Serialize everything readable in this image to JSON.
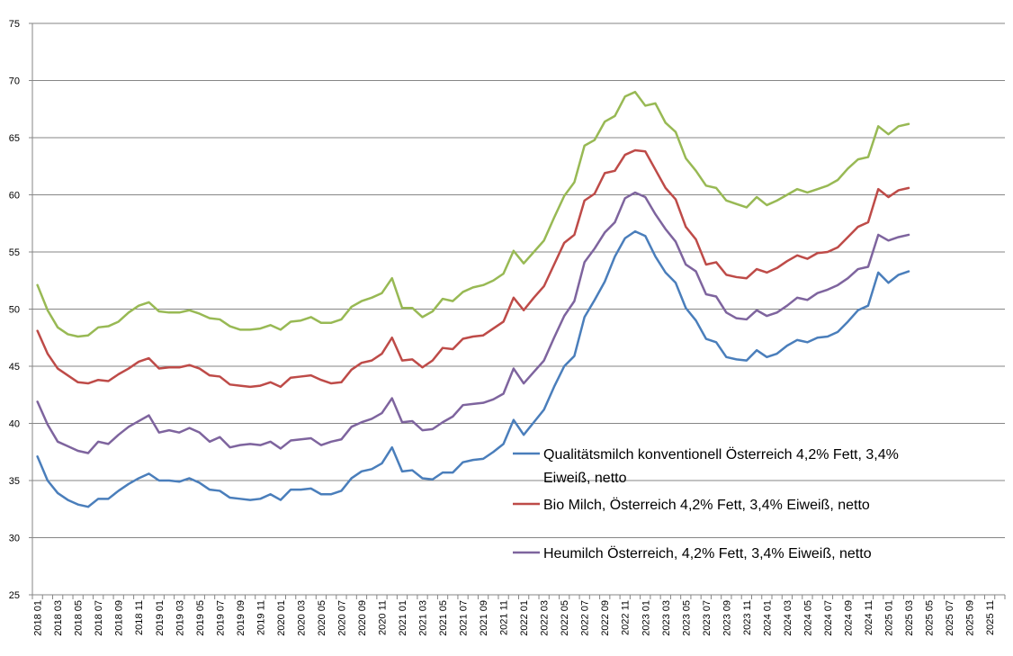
{
  "chart_data": {
    "type": "line",
    "title": "",
    "xlabel": "",
    "ylabel": "",
    "ylim": [
      25,
      75
    ],
    "y_ticks": [
      "25",
      "30",
      "35",
      "40",
      "45",
      "50",
      "55",
      "60",
      "65",
      "70",
      "75"
    ],
    "grid": "horizontal",
    "legend_position": "inside-lower-right",
    "x_tick_labels": [
      "2018 01",
      "2018 03",
      "2018 05",
      "2018 07",
      "2018 09",
      "2018 11",
      "2019 01",
      "2019 03",
      "2019 05",
      "2019 07",
      "2019 09",
      "2019 11",
      "2020 01",
      "2020 03",
      "2020 05",
      "2020 07",
      "2020 09",
      "2020 11",
      "2021 01",
      "2021 03",
      "2021 05",
      "2021 07",
      "2021 09",
      "2021 11",
      "2022 01",
      "2022 03",
      "2022 05",
      "2022 07",
      "2022 09",
      "2022 11",
      "2023 01",
      "2023 03",
      "2023 05",
      "2023 07",
      "2023 09",
      "2023 11",
      "2024 01",
      "2024 03",
      "2024 05",
      "2024 07",
      "2024 09",
      "2024 11",
      "2025 01",
      "2025 03",
      "2025 05",
      "2025 07",
      "2025 09",
      "2025 11"
    ],
    "x_month_count": 96,
    "series": [
      {
        "name": "Qualitätsmilch konventionell Österreich 4,2% Fett, 3,4% Eiweiß, netto",
        "legend_lines": [
          "Qualitätsmilch konventionell Österreich 4,2% Fett, 3,4%",
          "Eiweiß, netto"
        ],
        "color": "#4a7ebb",
        "values": [
          37.1,
          35.0,
          33.9,
          33.3,
          32.9,
          32.7,
          33.4,
          33.4,
          34.1,
          34.7,
          35.2,
          35.6,
          35.0,
          35.0,
          34.9,
          35.2,
          34.8,
          34.2,
          34.1,
          33.5,
          33.4,
          33.3,
          33.4,
          33.8,
          33.3,
          34.2,
          34.2,
          34.3,
          33.8,
          33.8,
          34.1,
          35.2,
          35.8,
          36.0,
          36.5,
          37.9,
          35.8,
          35.9,
          35.2,
          35.1,
          35.7,
          35.7,
          36.6,
          36.8,
          36.9,
          37.5,
          38.2,
          40.3,
          39.0,
          40.1,
          41.2,
          43.2,
          45.0,
          45.9,
          49.3,
          50.8,
          52.4,
          54.6,
          56.2,
          56.8,
          56.4,
          54.6,
          53.2,
          52.3,
          50.1,
          49.0,
          47.4,
          47.1,
          45.8,
          45.6,
          45.5,
          46.4,
          45.8,
          46.1,
          46.8,
          47.3,
          47.1,
          47.5,
          47.6,
          48.0,
          48.9,
          49.9,
          50.3,
          53.2,
          52.3,
          53.0,
          53.3
        ]
      },
      {
        "name": "Bio Milch, Österreich 4,2% Fett, 3,4% Eiweiß, netto",
        "legend_lines": [
          "Bio Milch, Österreich 4,2% Fett, 3,4% Eiweiß, netto"
        ],
        "color": "#be4b48",
        "values": [
          48.1,
          46.1,
          44.8,
          44.2,
          43.6,
          43.5,
          43.8,
          43.7,
          44.3,
          44.8,
          45.4,
          45.7,
          44.8,
          44.9,
          44.9,
          45.1,
          44.8,
          44.2,
          44.1,
          43.4,
          43.3,
          43.2,
          43.3,
          43.6,
          43.2,
          44.0,
          44.1,
          44.2,
          43.8,
          43.5,
          43.6,
          44.7,
          45.3,
          45.5,
          46.1,
          47.5,
          45.5,
          45.6,
          44.9,
          45.5,
          46.6,
          46.5,
          47.4,
          47.6,
          47.7,
          48.3,
          48.9,
          51.0,
          49.9,
          51.0,
          52.0,
          53.9,
          55.8,
          56.5,
          59.5,
          60.1,
          61.9,
          62.1,
          63.5,
          63.9,
          63.8,
          62.2,
          60.6,
          59.6,
          57.2,
          56.1,
          53.9,
          54.1,
          53.0,
          52.8,
          52.7,
          53.5,
          53.2,
          53.6,
          54.2,
          54.7,
          54.4,
          54.9,
          55.0,
          55.4,
          56.3,
          57.2,
          57.6,
          60.5,
          59.8,
          60.4,
          60.6
        ]
      },
      {
        "name": "Heumilch  Österreich, 4,2% Fett, 3,4% Eiweiß, netto",
        "legend_lines": [
          "Heumilch  Österreich, 4,2% Fett, 3,4% Eiweiß, netto"
        ],
        "color": "#7e649e",
        "values": [
          41.9,
          39.9,
          38.4,
          38.0,
          37.6,
          37.4,
          38.4,
          38.2,
          39.0,
          39.7,
          40.2,
          40.7,
          39.2,
          39.4,
          39.2,
          39.6,
          39.2,
          38.4,
          38.8,
          37.9,
          38.1,
          38.2,
          38.1,
          38.4,
          37.8,
          38.5,
          38.6,
          38.7,
          38.1,
          38.4,
          38.6,
          39.7,
          40.1,
          40.4,
          40.9,
          42.2,
          40.1,
          40.2,
          39.4,
          39.5,
          40.1,
          40.6,
          41.6,
          41.7,
          41.8,
          42.1,
          42.6,
          44.8,
          43.5,
          44.5,
          45.5,
          47.5,
          49.4,
          50.7,
          54.1,
          55.3,
          56.7,
          57.6,
          59.7,
          60.2,
          59.8,
          58.3,
          57.0,
          55.9,
          53.9,
          53.3,
          51.3,
          51.1,
          49.7,
          49.2,
          49.1,
          49.9,
          49.4,
          49.7,
          50.3,
          51.0,
          50.8,
          51.4,
          51.7,
          52.1,
          52.7,
          53.5,
          53.7,
          56.5,
          56.0,
          56.3,
          56.5
        ]
      },
      {
        "name": "",
        "legend_lines": [],
        "color": "#98b954",
        "values": [
          52.1,
          49.9,
          48.4,
          47.8,
          47.6,
          47.7,
          48.4,
          48.5,
          48.9,
          49.7,
          50.3,
          50.6,
          49.8,
          49.7,
          49.7,
          49.9,
          49.6,
          49.2,
          49.1,
          48.5,
          48.2,
          48.2,
          48.3,
          48.6,
          48.2,
          48.9,
          49.0,
          49.3,
          48.8,
          48.8,
          49.1,
          50.2,
          50.7,
          51.0,
          51.4,
          52.7,
          50.1,
          50.1,
          49.3,
          49.8,
          50.9,
          50.7,
          51.5,
          51.9,
          52.1,
          52.5,
          53.1,
          55.1,
          54.0,
          55.0,
          56.0,
          58.0,
          59.9,
          61.1,
          64.3,
          64.8,
          66.4,
          66.9,
          68.6,
          69.0,
          67.8,
          68.0,
          66.3,
          65.5,
          63.2,
          62.1,
          60.8,
          60.6,
          59.5,
          59.2,
          58.9,
          59.8,
          59.1,
          59.5,
          60.0,
          60.5,
          60.2,
          60.5,
          60.8,
          61.3,
          62.3,
          63.1,
          63.3,
          66.0,
          65.3,
          66.0,
          66.2
        ]
      }
    ]
  }
}
